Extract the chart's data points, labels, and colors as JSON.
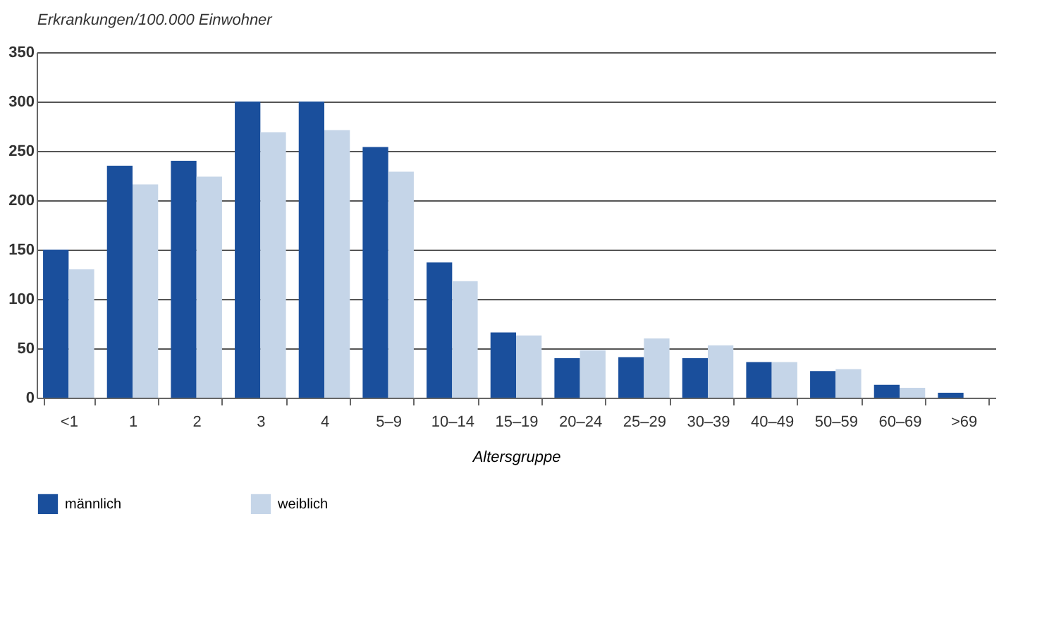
{
  "chart_data": {
    "type": "bar",
    "ylabel": "Erkrankungen/100.000 Einwohner",
    "xlabel": "Altersgruppe",
    "categories": [
      "<1",
      "1",
      "2",
      "3",
      "4",
      "5–9",
      "10–14",
      "15–19",
      "20–24",
      "25–29",
      "30–39",
      "40–49",
      "50–59",
      "60–69",
      ">69"
    ],
    "series": [
      {
        "name": "männlich",
        "color": "#1a4f9c",
        "values": [
          150,
          235,
          240,
          300,
          300,
          254,
          137,
          66,
          40,
          41,
          40,
          36,
          27,
          13,
          5
        ]
      },
      {
        "name": "weiblich",
        "color": "#c5d5e8",
        "values": [
          130,
          216,
          224,
          269,
          271,
          229,
          118,
          63,
          48,
          60,
          53,
          36,
          29,
          10,
          null
        ]
      }
    ],
    "ylim": [
      0,
      350
    ],
    "yticks": [
      0,
      50,
      100,
      150,
      200,
      250,
      300,
      350
    ],
    "grid": "y",
    "legend": "bottom"
  }
}
